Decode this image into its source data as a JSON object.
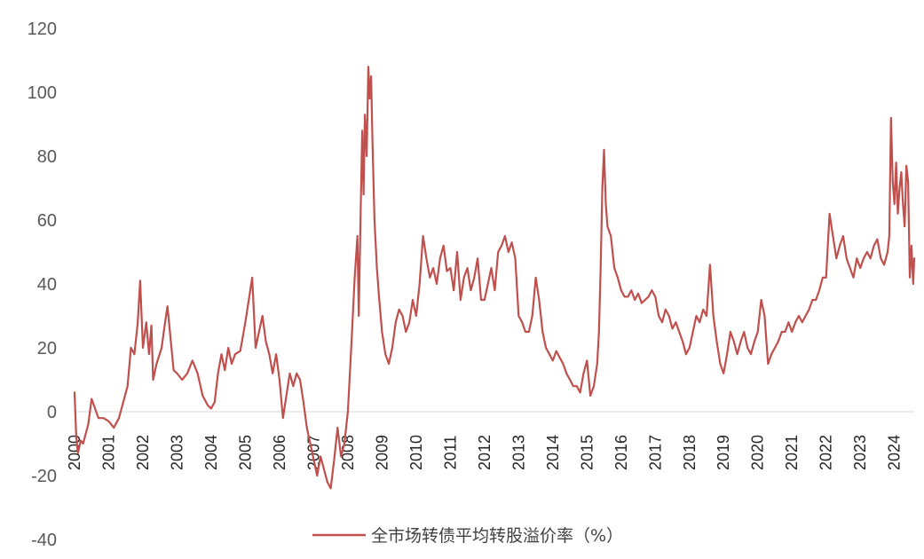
{
  "chart_data": {
    "type": "line",
    "title": "",
    "xlabel": "",
    "ylabel": "",
    "ylim": [
      -40,
      120
    ],
    "yticks": [
      "120",
      "100",
      "80",
      "60",
      "40",
      "20",
      "0",
      "-20",
      "-40"
    ],
    "xtick_labels": [
      "2000",
      "2001",
      "2002",
      "2003",
      "2004",
      "2005",
      "2006",
      "2007",
      "2008",
      "2009",
      "2010",
      "2011",
      "2012",
      "2013",
      "2014",
      "2015",
      "2016",
      "2017",
      "2018",
      "2019",
      "2020",
      "2021",
      "2022",
      "2023",
      "2024"
    ],
    "grid": false,
    "legend_position": "bottom",
    "series": [
      {
        "name": "全市场转债平均转股溢价率（%）",
        "color": "#c0504d",
        "points": [
          [
            2000.0,
            6
          ],
          [
            2000.05,
            -8
          ],
          [
            2000.1,
            -13
          ],
          [
            2000.18,
            -9
          ],
          [
            2000.25,
            -10
          ],
          [
            2000.4,
            -4
          ],
          [
            2000.5,
            4
          ],
          [
            2000.6,
            1
          ],
          [
            2000.7,
            -2
          ],
          [
            2000.85,
            -2
          ],
          [
            2001.0,
            -3
          ],
          [
            2001.15,
            -5
          ],
          [
            2001.3,
            -2
          ],
          [
            2001.4,
            2
          ],
          [
            2001.55,
            8
          ],
          [
            2001.65,
            20
          ],
          [
            2001.75,
            18
          ],
          [
            2001.85,
            28
          ],
          [
            2001.92,
            41
          ],
          [
            2002.0,
            20
          ],
          [
            2002.1,
            28
          ],
          [
            2002.18,
            18
          ],
          [
            2002.25,
            27
          ],
          [
            2002.3,
            10
          ],
          [
            2002.4,
            15
          ],
          [
            2002.55,
            20
          ],
          [
            2002.65,
            28
          ],
          [
            2002.72,
            33
          ],
          [
            2002.8,
            24
          ],
          [
            2002.9,
            13
          ],
          [
            2003.0,
            12
          ],
          [
            2003.15,
            10
          ],
          [
            2003.3,
            12
          ],
          [
            2003.45,
            16
          ],
          [
            2003.6,
            12
          ],
          [
            2003.75,
            5
          ],
          [
            2003.9,
            2
          ],
          [
            2004.0,
            1
          ],
          [
            2004.1,
            3
          ],
          [
            2004.2,
            12
          ],
          [
            2004.3,
            18
          ],
          [
            2004.4,
            13
          ],
          [
            2004.5,
            20
          ],
          [
            2004.6,
            15
          ],
          [
            2004.7,
            18
          ],
          [
            2004.85,
            19
          ],
          [
            2005.0,
            28
          ],
          [
            2005.1,
            35
          ],
          [
            2005.2,
            42
          ],
          [
            2005.3,
            20
          ],
          [
            2005.4,
            25
          ],
          [
            2005.5,
            30
          ],
          [
            2005.6,
            22
          ],
          [
            2005.7,
            18
          ],
          [
            2005.8,
            12
          ],
          [
            2005.9,
            18
          ],
          [
            2006.0,
            10
          ],
          [
            2006.1,
            -2
          ],
          [
            2006.2,
            5
          ],
          [
            2006.3,
            12
          ],
          [
            2006.4,
            8
          ],
          [
            2006.5,
            12
          ],
          [
            2006.6,
            10
          ],
          [
            2006.7,
            3
          ],
          [
            2006.8,
            -5
          ],
          [
            2006.9,
            -10
          ],
          [
            2007.0,
            -15
          ],
          [
            2007.1,
            -20
          ],
          [
            2007.2,
            -14
          ],
          [
            2007.3,
            -18
          ],
          [
            2007.4,
            -22
          ],
          [
            2007.5,
            -24
          ],
          [
            2007.6,
            -15
          ],
          [
            2007.7,
            -5
          ],
          [
            2007.8,
            -14
          ],
          [
            2007.9,
            -10
          ],
          [
            2008.0,
            0
          ],
          [
            2008.05,
            10
          ],
          [
            2008.1,
            20
          ],
          [
            2008.2,
            42
          ],
          [
            2008.28,
            55
          ],
          [
            2008.32,
            30
          ],
          [
            2008.38,
            65
          ],
          [
            2008.42,
            88
          ],
          [
            2008.46,
            68
          ],
          [
            2008.5,
            93
          ],
          [
            2008.55,
            80
          ],
          [
            2008.6,
            108
          ],
          [
            2008.64,
            98
          ],
          [
            2008.68,
            105
          ],
          [
            2008.72,
            85
          ],
          [
            2008.78,
            60
          ],
          [
            2008.85,
            45
          ],
          [
            2008.92,
            35
          ],
          [
            2009.0,
            25
          ],
          [
            2009.1,
            18
          ],
          [
            2009.2,
            15
          ],
          [
            2009.3,
            20
          ],
          [
            2009.4,
            28
          ],
          [
            2009.5,
            32
          ],
          [
            2009.6,
            30
          ],
          [
            2009.7,
            25
          ],
          [
            2009.8,
            28
          ],
          [
            2009.9,
            35
          ],
          [
            2010.0,
            30
          ],
          [
            2010.1,
            40
          ],
          [
            2010.2,
            55
          ],
          [
            2010.3,
            48
          ],
          [
            2010.4,
            42
          ],
          [
            2010.5,
            45
          ],
          [
            2010.6,
            40
          ],
          [
            2010.7,
            48
          ],
          [
            2010.8,
            52
          ],
          [
            2010.9,
            44
          ],
          [
            2011.0,
            45
          ],
          [
            2011.1,
            38
          ],
          [
            2011.2,
            50
          ],
          [
            2011.3,
            35
          ],
          [
            2011.4,
            42
          ],
          [
            2011.5,
            45
          ],
          [
            2011.6,
            38
          ],
          [
            2011.7,
            42
          ],
          [
            2011.8,
            48
          ],
          [
            2011.9,
            35
          ],
          [
            2012.0,
            35
          ],
          [
            2012.1,
            40
          ],
          [
            2012.2,
            45
          ],
          [
            2012.3,
            38
          ],
          [
            2012.4,
            50
          ],
          [
            2012.5,
            52
          ],
          [
            2012.6,
            55
          ],
          [
            2012.7,
            50
          ],
          [
            2012.8,
            53
          ],
          [
            2012.9,
            48
          ],
          [
            2013.0,
            30
          ],
          [
            2013.1,
            28
          ],
          [
            2013.2,
            25
          ],
          [
            2013.3,
            25
          ],
          [
            2013.4,
            30
          ],
          [
            2013.5,
            42
          ],
          [
            2013.6,
            35
          ],
          [
            2013.7,
            25
          ],
          [
            2013.8,
            20
          ],
          [
            2013.9,
            18
          ],
          [
            2014.0,
            16
          ],
          [
            2014.1,
            19
          ],
          [
            2014.2,
            17
          ],
          [
            2014.3,
            15
          ],
          [
            2014.4,
            12
          ],
          [
            2014.5,
            10
          ],
          [
            2014.6,
            8
          ],
          [
            2014.7,
            8
          ],
          [
            2014.8,
            6
          ],
          [
            2014.9,
            12
          ],
          [
            2015.0,
            16
          ],
          [
            2015.1,
            5
          ],
          [
            2015.2,
            8
          ],
          [
            2015.3,
            15
          ],
          [
            2015.35,
            25
          ],
          [
            2015.4,
            45
          ],
          [
            2015.45,
            70
          ],
          [
            2015.5,
            82
          ],
          [
            2015.55,
            65
          ],
          [
            2015.6,
            58
          ],
          [
            2015.7,
            55
          ],
          [
            2015.8,
            45
          ],
          [
            2015.9,
            42
          ],
          [
            2016.0,
            38
          ],
          [
            2016.1,
            36
          ],
          [
            2016.2,
            36
          ],
          [
            2016.3,
            38
          ],
          [
            2016.4,
            35
          ],
          [
            2016.5,
            37
          ],
          [
            2016.6,
            34
          ],
          [
            2016.7,
            35
          ],
          [
            2016.8,
            36
          ],
          [
            2016.9,
            38
          ],
          [
            2017.0,
            36
          ],
          [
            2017.1,
            30
          ],
          [
            2017.2,
            28
          ],
          [
            2017.3,
            32
          ],
          [
            2017.4,
            30
          ],
          [
            2017.5,
            26
          ],
          [
            2017.6,
            28
          ],
          [
            2017.7,
            25
          ],
          [
            2017.8,
            22
          ],
          [
            2017.9,
            18
          ],
          [
            2018.0,
            20
          ],
          [
            2018.1,
            25
          ],
          [
            2018.2,
            30
          ],
          [
            2018.3,
            28
          ],
          [
            2018.4,
            32
          ],
          [
            2018.5,
            30
          ],
          [
            2018.6,
            46
          ],
          [
            2018.7,
            30
          ],
          [
            2018.8,
            22
          ],
          [
            2018.9,
            15
          ],
          [
            2019.0,
            12
          ],
          [
            2019.1,
            18
          ],
          [
            2019.2,
            25
          ],
          [
            2019.3,
            22
          ],
          [
            2019.4,
            18
          ],
          [
            2019.5,
            22
          ],
          [
            2019.6,
            25
          ],
          [
            2019.7,
            20
          ],
          [
            2019.8,
            18
          ],
          [
            2019.9,
            22
          ],
          [
            2020.0,
            25
          ],
          [
            2020.1,
            35
          ],
          [
            2020.2,
            30
          ],
          [
            2020.3,
            15
          ],
          [
            2020.4,
            18
          ],
          [
            2020.5,
            20
          ],
          [
            2020.6,
            22
          ],
          [
            2020.7,
            25
          ],
          [
            2020.8,
            25
          ],
          [
            2020.9,
            28
          ],
          [
            2021.0,
            25
          ],
          [
            2021.1,
            28
          ],
          [
            2021.2,
            30
          ],
          [
            2021.3,
            28
          ],
          [
            2021.4,
            30
          ],
          [
            2021.5,
            32
          ],
          [
            2021.6,
            35
          ],
          [
            2021.7,
            35
          ],
          [
            2021.8,
            38
          ],
          [
            2021.9,
            42
          ],
          [
            2022.0,
            42
          ],
          [
            2022.1,
            62
          ],
          [
            2022.2,
            55
          ],
          [
            2022.3,
            48
          ],
          [
            2022.4,
            52
          ],
          [
            2022.5,
            55
          ],
          [
            2022.6,
            48
          ],
          [
            2022.7,
            45
          ],
          [
            2022.8,
            42
          ],
          [
            2022.9,
            48
          ],
          [
            2023.0,
            45
          ],
          [
            2023.1,
            48
          ],
          [
            2023.2,
            50
          ],
          [
            2023.3,
            48
          ],
          [
            2023.4,
            52
          ],
          [
            2023.5,
            54
          ],
          [
            2023.6,
            48
          ],
          [
            2023.7,
            46
          ],
          [
            2023.8,
            50
          ],
          [
            2023.85,
            55
          ],
          [
            2023.9,
            92
          ],
          [
            2023.95,
            72
          ],
          [
            2024.0,
            65
          ],
          [
            2024.05,
            78
          ],
          [
            2024.1,
            62
          ],
          [
            2024.15,
            70
          ],
          [
            2024.2,
            75
          ],
          [
            2024.25,
            65
          ],
          [
            2024.3,
            58
          ],
          [
            2024.35,
            77
          ],
          [
            2024.4,
            72
          ],
          [
            2024.45,
            42
          ],
          [
            2024.5,
            52
          ],
          [
            2024.55,
            40
          ],
          [
            2024.58,
            48
          ]
        ]
      }
    ]
  }
}
